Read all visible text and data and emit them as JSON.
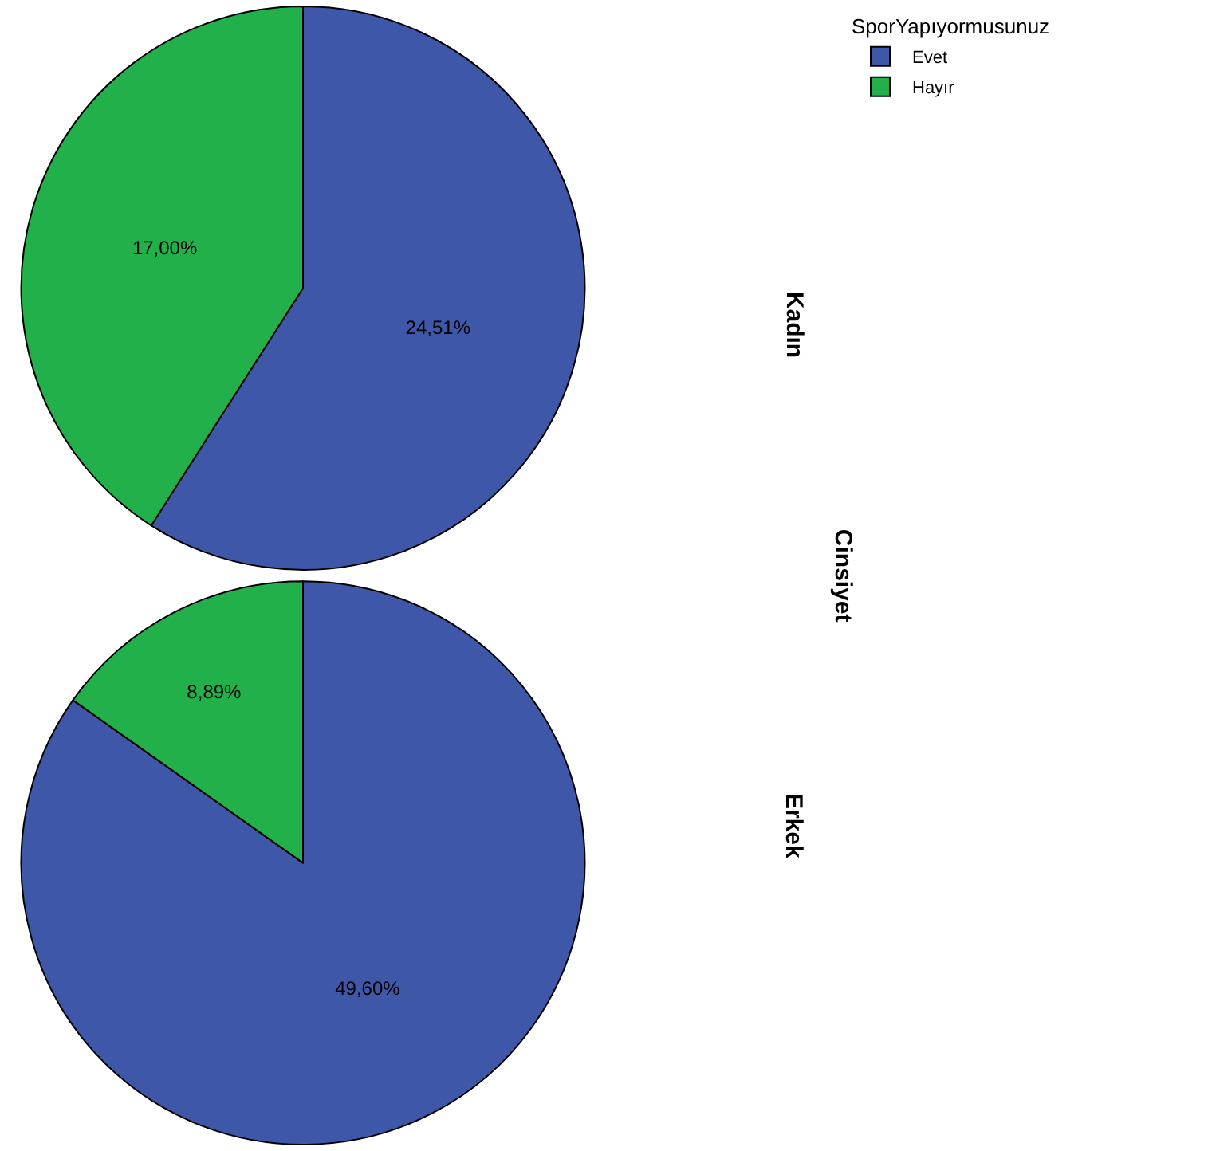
{
  "chart_data": [
    {
      "type": "pie",
      "title": "Kadın",
      "categories": [
        "Evet",
        "Hayır"
      ],
      "values": [
        24.51,
        17.0
      ],
      "colors": [
        "#3f57a8",
        "#22b04b"
      ],
      "value_labels": [
        "24,51%",
        "17,00%"
      ],
      "legend_title": "SporYapıyormusunuz",
      "legend": "top right",
      "annotations": [
        "Cinsiyet"
      ]
    },
    {
      "type": "pie",
      "title": "Erkek",
      "categories": [
        null,
        null
      ],
      "values": [
        49.6,
        8.89
      ],
      "colors": [
        "#3f57a8",
        "#22b04b"
      ],
      "value_labels": [
        "49,60%",
        "8,89%"
      ]
    }
  ]
}
